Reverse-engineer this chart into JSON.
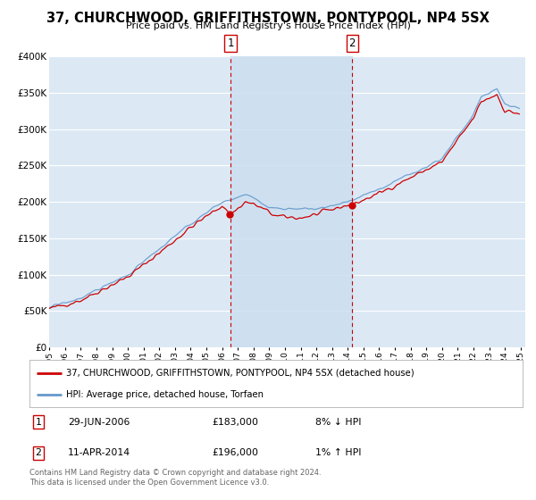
{
  "title": "37, CHURCHWOOD, GRIFFITHSTOWN, PONTYPOOL, NP4 5SX",
  "subtitle": "Price paid vs. HM Land Registry's House Price Index (HPI)",
  "background_color": "#ffffff",
  "plot_bg_color": "#dce9f5",
  "grid_color": "#ffffff",
  "ylim": [
    0,
    400000
  ],
  "yticks": [
    0,
    50000,
    100000,
    150000,
    200000,
    250000,
    300000,
    350000,
    400000
  ],
  "ytick_labels": [
    "£0",
    "£50K",
    "£100K",
    "£150K",
    "£200K",
    "£250K",
    "£300K",
    "£350K",
    "£400K"
  ],
  "legend_label_red": "37, CHURCHWOOD, GRIFFITHSTOWN, PONTYPOOL, NP4 5SX (detached house)",
  "legend_label_blue": "HPI: Average price, detached house, Torfaen",
  "footer1": "Contains HM Land Registry data © Crown copyright and database right 2024.",
  "footer2": "This data is licensed under the Open Government Licence v3.0.",
  "red_color": "#cc0000",
  "blue_color": "#6699cc",
  "vline_color": "#cc0000",
  "shade_color": "#ccdff0",
  "marker1_year": 2006.54,
  "marker1_value": 183000,
  "marker2_year": 2014.28,
  "marker2_value": 196000
}
